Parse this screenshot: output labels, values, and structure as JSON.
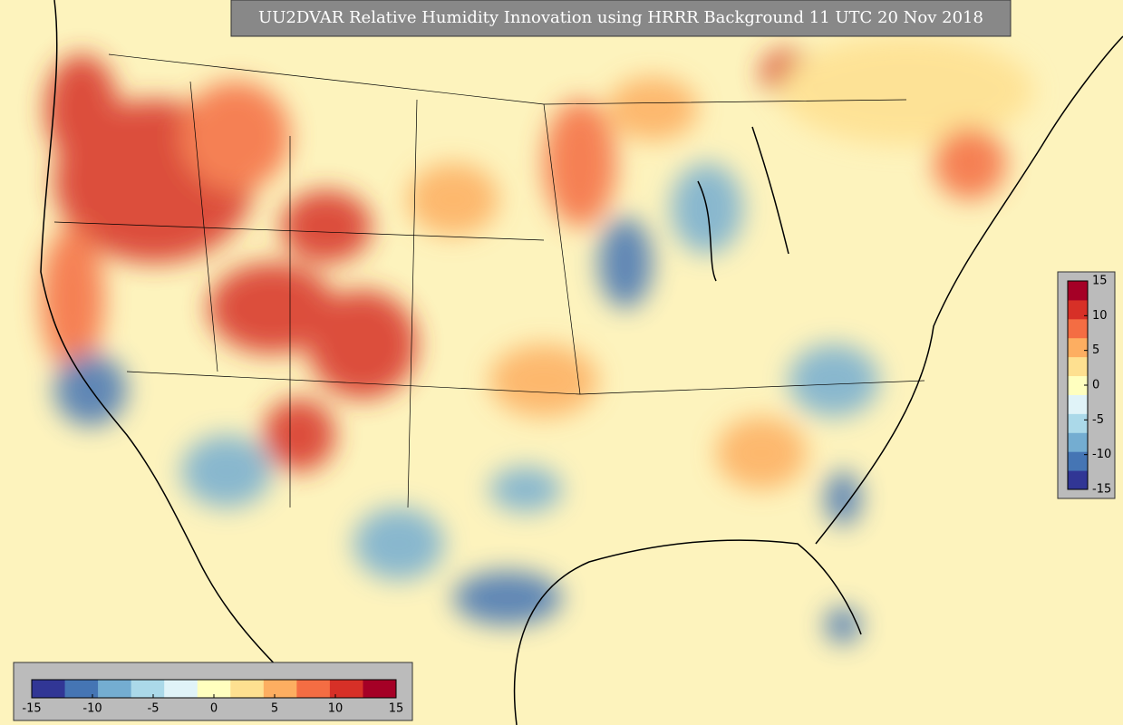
{
  "title": "UU2DVAR Relative Humidity Innovation using HRRR Background 11 UTC 20 Nov 2018",
  "colorbar": {
    "range": [
      -15,
      15
    ],
    "ticks": [
      -15,
      -10,
      -5,
      0,
      5,
      10,
      15
    ],
    "colors": [
      "#313695",
      "#4575b4",
      "#74add1",
      "#abd9e9",
      "#e0f3f8",
      "#ffffbf",
      "#fee090",
      "#fdae61",
      "#f46d43",
      "#d73027",
      "#a50026"
    ]
  }
}
